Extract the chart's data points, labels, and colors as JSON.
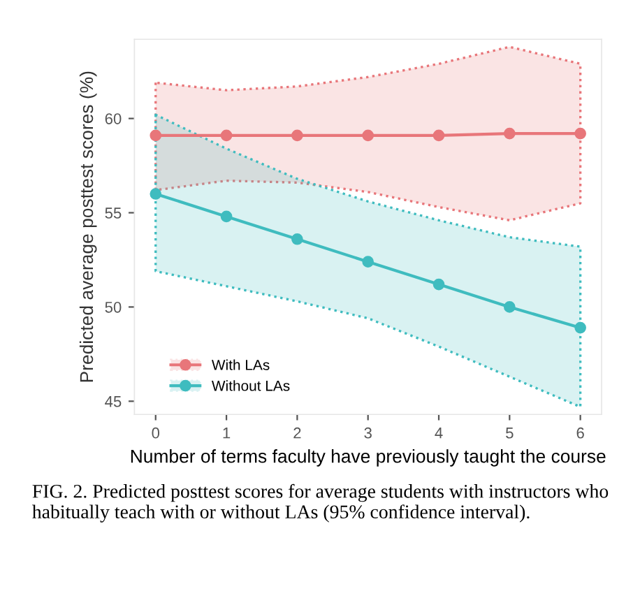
{
  "chart_data": {
    "type": "line",
    "xlabel": "Number of terms faculty have previously taught the course",
    "ylabel": "Predicted average posttest scores (%)",
    "x": [
      0,
      1,
      2,
      3,
      4,
      5,
      6
    ],
    "series": [
      {
        "name": "With LAs",
        "color": "#e8767a",
        "values": [
          59.1,
          59.1,
          59.1,
          59.1,
          59.1,
          59.2,
          59.2
        ],
        "lower": [
          56.2,
          56.7,
          56.6,
          56.1,
          55.3,
          54.6,
          55.5
        ],
        "upper": [
          61.9,
          61.5,
          61.7,
          62.2,
          62.9,
          63.8,
          62.9
        ]
      },
      {
        "name": "Without LAs",
        "color": "#3fbcbf",
        "values": [
          56.0,
          54.8,
          53.6,
          52.4,
          51.2,
          50.0,
          48.9
        ],
        "lower": [
          51.9,
          51.1,
          50.3,
          49.4,
          47.9,
          46.3,
          44.7
        ],
        "upper": [
          60.2,
          58.4,
          56.8,
          55.6,
          54.6,
          53.7,
          53.2
        ]
      }
    ],
    "xlim": [
      -0.3,
      6.3
    ],
    "ylim": [
      44.3,
      64.2
    ],
    "xticks": [
      0,
      1,
      2,
      3,
      4,
      5,
      6
    ],
    "yticks": [
      45,
      50,
      55,
      60
    ],
    "marker": "circle",
    "line_style": "solid",
    "grid": false,
    "legend": "bottom left",
    "annotations": [
      "FIG. 2. Predicted posttest scores for average students with instructors who habitually teach with or without LAs (95% confidence interval)."
    ]
  }
}
